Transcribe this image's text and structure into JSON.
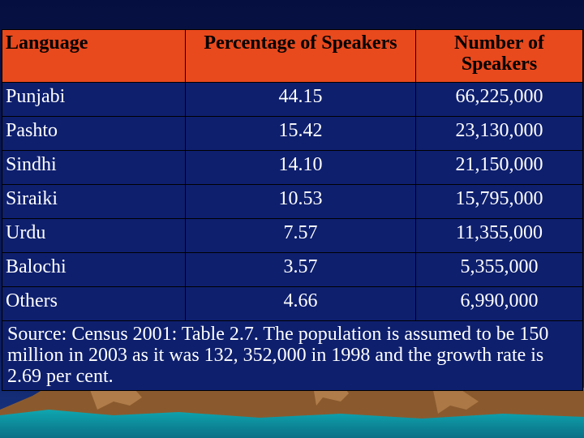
{
  "table": {
    "headers": [
      "Language",
      "Percentage of Speakers",
      "Number of Speakers"
    ],
    "rows": [
      [
        "Punjabi",
        "44.15",
        "66,225,000"
      ],
      [
        "Pashto",
        "15.42",
        "23,130,000"
      ],
      [
        "Sindhi",
        "14.10",
        "21,150,000"
      ],
      [
        "Siraiki",
        "10.53",
        "15,795,000"
      ],
      [
        "Urdu",
        "7.57",
        "11,355,000"
      ],
      [
        "Balochi",
        "3.57",
        "5,355,000"
      ],
      [
        "Others",
        "4.66",
        "6,990,000"
      ]
    ],
    "source": "Source: Census 2001: Table 2.7. The population is assumed to be 150 million in 2003 as it was 132, 352,000 in 1998 and the growth rate is 2.69 per cent."
  },
  "colors": {
    "background": "#0a1852",
    "header_fill": "#e8491d",
    "cell_fill": "#0e1f6e",
    "mountain": "#8a5a2e",
    "water": "#0fa7b0"
  }
}
